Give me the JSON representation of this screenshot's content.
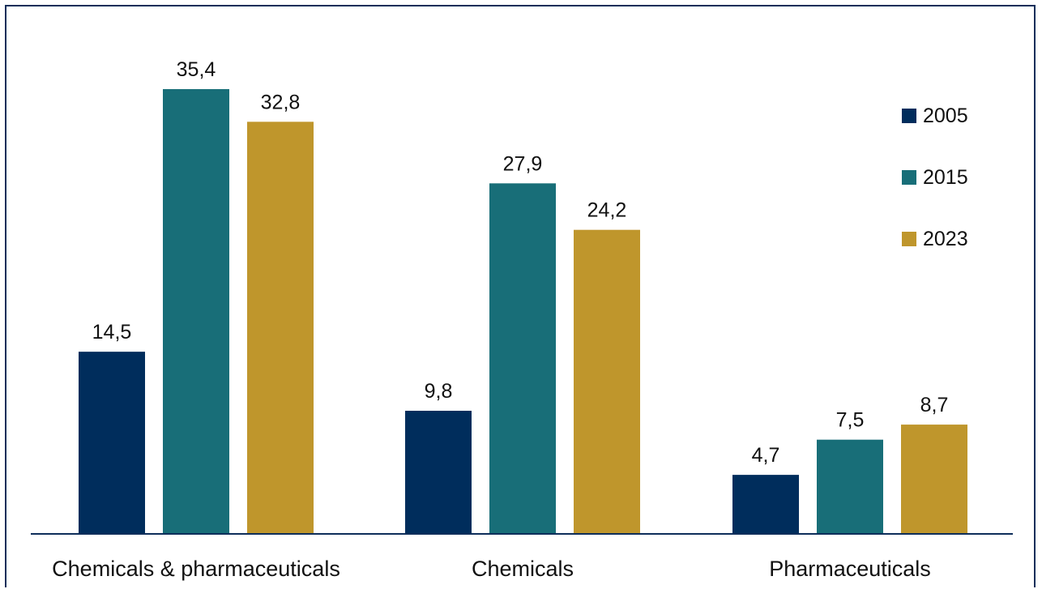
{
  "chart_data": {
    "type": "bar",
    "title": "",
    "xlabel": "",
    "ylabel": "",
    "categories": [
      "Chemicals & pharmaceuticals",
      "Chemicals",
      "Pharmaceuticals"
    ],
    "series": [
      {
        "name": "2005",
        "values": [
          14.5,
          9.8,
          4.7
        ],
        "labels": [
          "14,5",
          "9,8",
          "4,7"
        ],
        "color": "#002d5c"
      },
      {
        "name": "2015",
        "values": [
          35.4,
          27.9,
          7.5
        ],
        "labels": [
          "35,4",
          "27,9",
          "7,5"
        ],
        "color": "#186e78"
      },
      {
        "name": "2023",
        "values": [
          32.8,
          24.2,
          8.7
        ],
        "labels": [
          "32,8",
          "24,2",
          "8,7"
        ],
        "color": "#bf962c"
      }
    ],
    "ylim": [
      0,
      35.4
    ],
    "grid": false,
    "legend_position": "top-right",
    "frame_color": "#0e2e5a",
    "axis_color": "#0e2e5a"
  }
}
